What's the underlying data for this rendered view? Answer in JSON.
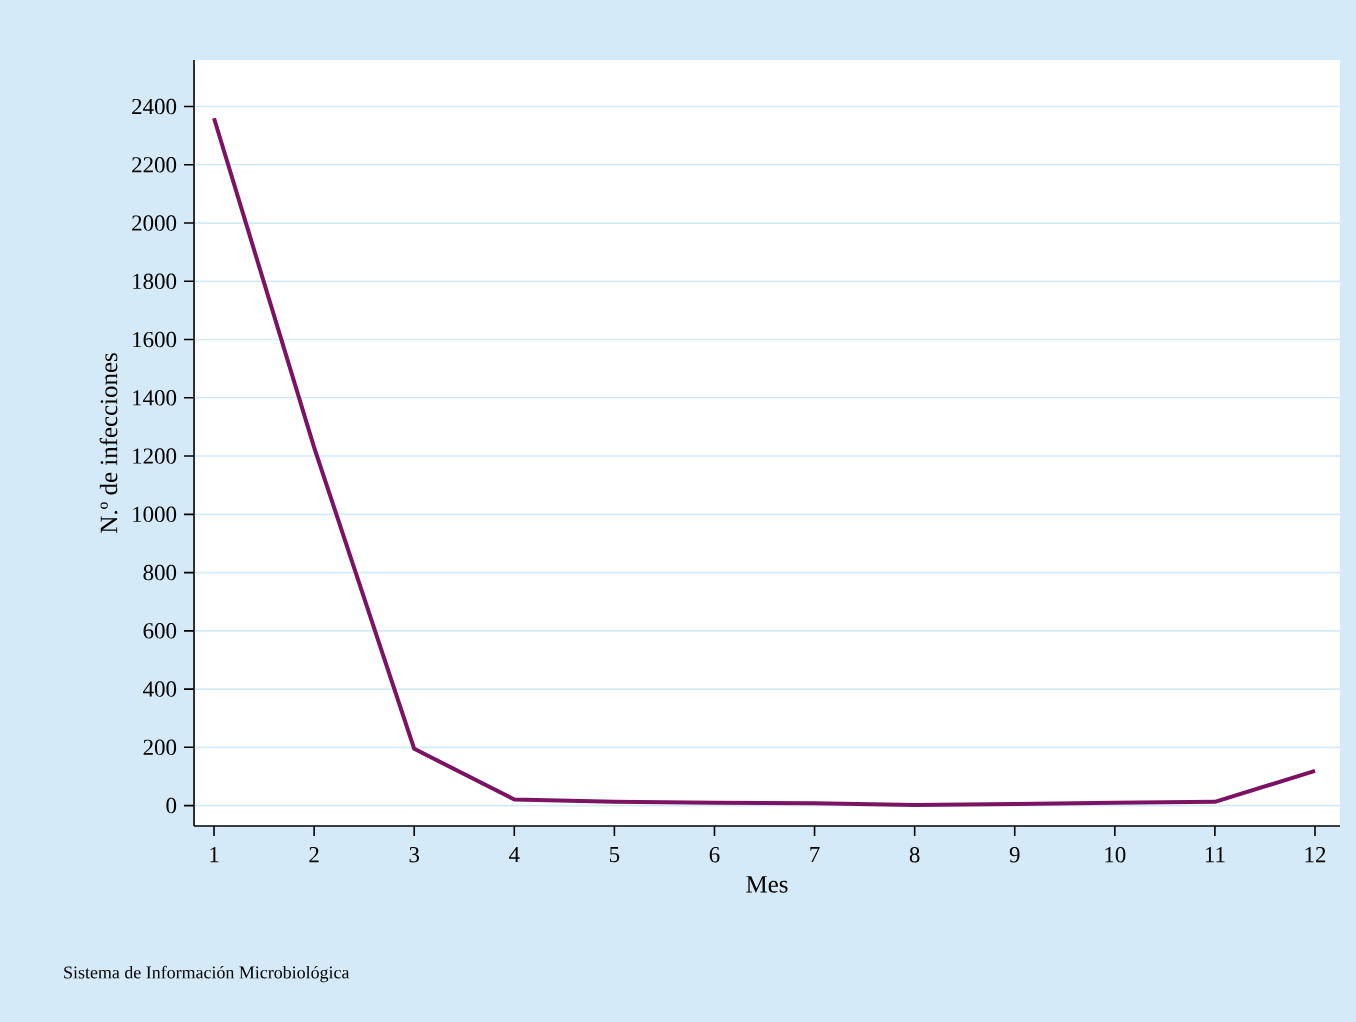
{
  "chart_data": {
    "type": "line",
    "xlabel": "Mes",
    "ylabel": "N.º de infecciones",
    "annotations": [
      "Sistema de Información Microbiológica"
    ],
    "x": [
      1,
      2,
      3,
      4,
      5,
      6,
      7,
      8,
      9,
      10,
      11,
      12
    ],
    "series": [
      {
        "color": "#7b1262",
        "values": [
          2360,
          1230,
          195,
          21,
          13,
          10,
          8,
          2,
          5,
          10,
          13,
          119
        ]
      }
    ],
    "xlim": [
      0.8,
      12.25
    ],
    "ylim": [
      -70,
      2560
    ],
    "xticks": [
      1,
      2,
      3,
      4,
      5,
      6,
      7,
      8,
      9,
      10,
      11,
      12
    ],
    "yticks": [
      0,
      200,
      400,
      600,
      800,
      1000,
      1200,
      1400,
      1600,
      1800,
      2000,
      2200,
      2400
    ],
    "grid": "y",
    "marker": "none",
    "line_style": "solid"
  }
}
